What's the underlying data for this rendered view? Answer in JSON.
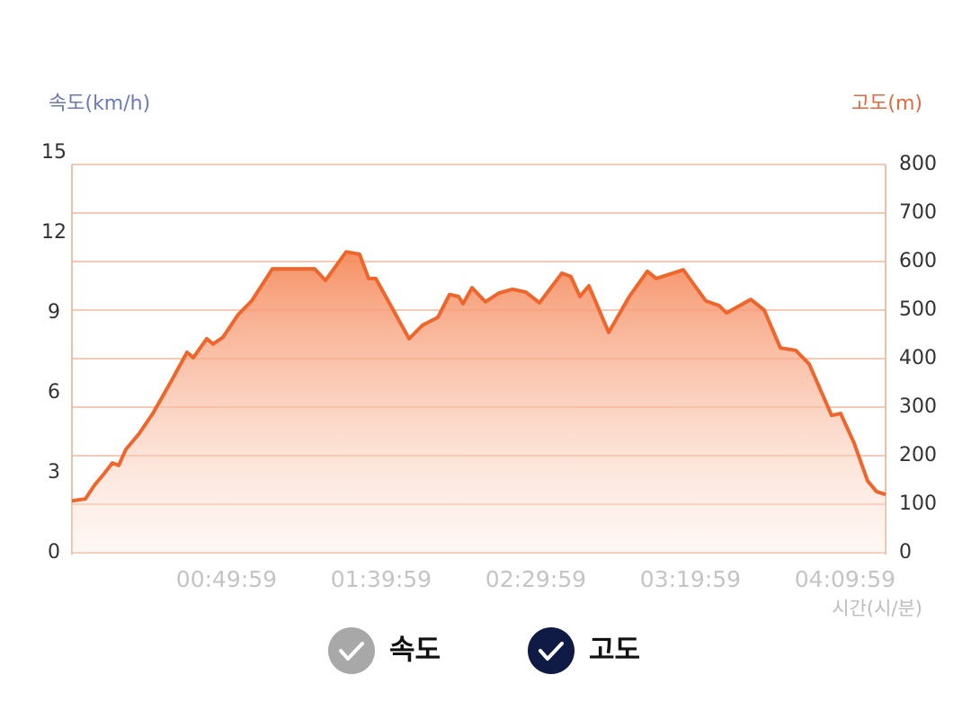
{
  "chart_data": {
    "type": "area",
    "ylabel": "속도(km/h)",
    "y2label": "고도(m)",
    "xlabel": "시간(시/분)",
    "ylim": [
      0,
      15
    ],
    "yticks": [
      0,
      3,
      6,
      9,
      12,
      15
    ],
    "y2lim": [
      0,
      800
    ],
    "y2ticks": [
      0,
      100,
      200,
      300,
      400,
      500,
      600,
      700,
      800
    ],
    "xlim": [
      0,
      15785
    ],
    "xticks": [
      {
        "value": 2999,
        "label": "00:49:59"
      },
      {
        "value": 5999,
        "label": "01:39:59"
      },
      {
        "value": 8999,
        "label": "02:29:59"
      },
      {
        "value": 11999,
        "label": "03:19:59"
      },
      {
        "value": 14999,
        "label": "04:09:59"
      }
    ],
    "grid": true,
    "series": [
      {
        "color": "#f0652a",
        "axis": "y2",
        "x": [
          0,
          262,
          436,
          610,
          785,
          907,
          1047,
          1308,
          1570,
          1919,
          2233,
          2355,
          2616,
          2738,
          2930,
          3227,
          3488,
          3890,
          4709,
          4919,
          5320,
          5581,
          5756,
          5895,
          6541,
          6802,
          7099,
          7326,
          7500,
          7587,
          7762,
          8023,
          8285,
          8547,
          8808,
          9070,
          9506,
          9680,
          9855,
          10029,
          10413,
          10814,
          11163,
          11337,
          11860,
          12297,
          12558,
          12698,
          13169,
          13430,
          13744,
          14041,
          14302,
          14738,
          14913,
          15174,
          15436,
          15610,
          15785
        ],
        "values": [
          107,
          111,
          139,
          161,
          185,
          180,
          213,
          246,
          287,
          352,
          413,
          402,
          441,
          430,
          444,
          491,
          519,
          585,
          585,
          561,
          620,
          615,
          565,
          565,
          441,
          469,
          485,
          532,
          528,
          513,
          546,
          517,
          535,
          543,
          537,
          515,
          576,
          569,
          528,
          550,
          454,
          528,
          580,
          565,
          583,
          519,
          509,
          494,
          522,
          500,
          422,
          417,
          389,
          283,
          287,
          226,
          148,
          126,
          120
        ]
      }
    ],
    "legend": [
      {
        "name": "속도",
        "color": "#a8a8a8"
      },
      {
        "name": "고도",
        "color": "#0f1a45"
      }
    ]
  }
}
